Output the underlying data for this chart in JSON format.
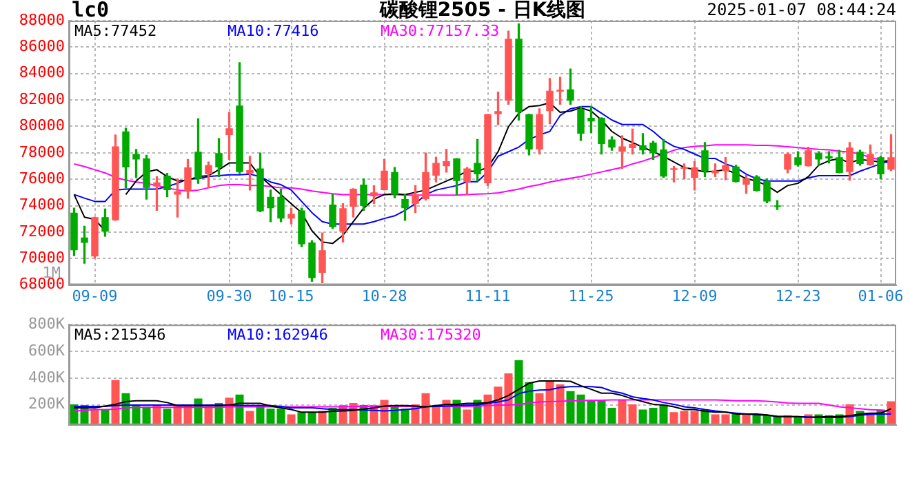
{
  "chart_data": [
    {
      "type": "candlestick",
      "title": "碳酸锂2505 - 日K线图",
      "annotations": [
        "lc0",
        "2025-01-07 08:44:24",
        "1M"
      ],
      "categories": [
        null,
        null,
        "09-09",
        null,
        null,
        null,
        null,
        null,
        null,
        null,
        null,
        null,
        null,
        null,
        null,
        "09-30",
        null,
        null,
        null,
        null,
        null,
        "10-15",
        null,
        null,
        null,
        null,
        null,
        null,
        null,
        null,
        "10-28",
        null,
        null,
        null,
        null,
        null,
        null,
        null,
        null,
        null,
        "11-11",
        null,
        null,
        null,
        null,
        null,
        null,
        null,
        null,
        null,
        "11-25",
        null,
        null,
        null,
        null,
        null,
        null,
        null,
        null,
        null,
        "12-09",
        null,
        null,
        null,
        null,
        null,
        null,
        null,
        null,
        null,
        "12-23",
        null,
        null,
        null,
        null,
        null,
        null,
        null,
        "01-06",
        null
      ],
      "ohlc": [
        [
          73470,
          73810,
          70220,
          70630
        ],
        [
          71590,
          72440,
          69640,
          71180
        ],
        [
          70150,
          73130,
          70050,
          73130
        ],
        [
          73130,
          73740,
          71690,
          72030
        ],
        [
          72890,
          79350,
          72890,
          78490
        ],
        [
          79620,
          79860,
          75350,
          76890
        ],
        [
          77910,
          78250,
          76140,
          77500
        ],
        [
          77570,
          77810,
          74490,
          75350
        ],
        [
          75450,
          76200,
          73640,
          75760
        ],
        [
          76270,
          76440,
          74670,
          75180
        ],
        [
          74840,
          76030,
          73130,
          75080
        ],
        [
          75110,
          77500,
          74560,
          76890
        ],
        [
          78080,
          80580,
          75690,
          76030
        ],
        [
          76370,
          77300,
          75350,
          77060
        ],
        [
          77980,
          79080,
          76200,
          76890
        ],
        [
          79350,
          81060,
          77500,
          79850
        ],
        [
          81570,
          84820,
          76440,
          76540
        ],
        [
          76440,
          77740,
          75180,
          76680
        ],
        [
          76820,
          77980,
          73540,
          73570
        ],
        [
          74670,
          75180,
          72780,
          73810
        ],
        [
          74670,
          75250,
          72780,
          73030
        ],
        [
          73030,
          73810,
          72610,
          73370
        ],
        [
          73640,
          73810,
          70900,
          71080
        ],
        [
          71210,
          71350,
          68270,
          68510
        ],
        [
          68920,
          71930,
          68170,
          70630
        ],
        [
          74080,
          74840,
          72270,
          72370
        ],
        [
          72030,
          74150,
          71250,
          73810
        ],
        [
          73910,
          75280,
          73130,
          75280
        ],
        [
          75590,
          76030,
          73640,
          73980
        ],
        [
          74700,
          75520,
          74150,
          75010
        ],
        [
          75180,
          77500,
          75180,
          76650
        ],
        [
          76540,
          76890,
          74590,
          74840
        ],
        [
          74490,
          74840,
          72890,
          73810
        ],
        [
          74150,
          75520,
          73470,
          74840
        ],
        [
          74490,
          77980,
          74430,
          76540
        ],
        [
          76270,
          77670,
          75790,
          77230
        ],
        [
          76990,
          78250,
          76540,
          77370
        ],
        [
          77570,
          77570,
          74840,
          75860
        ],
        [
          75790,
          76890,
          74840,
          76820
        ],
        [
          77230,
          79010,
          75860,
          76370
        ],
        [
          75690,
          80920,
          75520,
          80920
        ],
        [
          80920,
          82600,
          80140,
          81160
        ],
        [
          81950,
          87210,
          81670,
          86630
        ],
        [
          86630,
          87760,
          80480,
          81060
        ],
        [
          80920,
          80920,
          77840,
          78250
        ],
        [
          78250,
          81330,
          77910,
          80920
        ],
        [
          81160,
          83620,
          80200,
          82700
        ],
        [
          82630,
          83720,
          81670,
          82770
        ],
        [
          82800,
          84340,
          81670,
          81950
        ],
        [
          81330,
          81500,
          78940,
          79450
        ],
        [
          80650,
          81500,
          79520,
          80370
        ],
        [
          80650,
          80650,
          77910,
          78670
        ],
        [
          79010,
          79210,
          78190,
          78390
        ],
        [
          78080,
          79280,
          76820,
          78490
        ],
        [
          78360,
          79790,
          77910,
          78670
        ],
        [
          78560,
          79450,
          77910,
          78190
        ],
        [
          78770,
          78870,
          77500,
          77980
        ],
        [
          78250,
          79010,
          76130,
          76200
        ],
        [
          76710,
          76960,
          75790,
          76830
        ],
        [
          76790,
          77160,
          76030,
          76860
        ],
        [
          76100,
          77330,
          75180,
          76890
        ],
        [
          78190,
          78770,
          76200,
          76610
        ],
        [
          76450,
          77160,
          76200,
          76650
        ],
        [
          76610,
          77640,
          75960,
          77060
        ],
        [
          76960,
          77060,
          75790,
          75790
        ],
        [
          75590,
          76300,
          74940,
          76030
        ],
        [
          76200,
          76270,
          75110,
          75110
        ],
        [
          75860,
          76030,
          74220,
          74320
        ],
        [
          73980,
          74390,
          73710,
          73910
        ],
        [
          76720,
          77980,
          76480,
          77910
        ],
        [
          77670,
          78080,
          76990,
          77060
        ],
        [
          76990,
          78430,
          76990,
          78190
        ],
        [
          77980,
          78080,
          77060,
          77500
        ],
        [
          77740,
          78080,
          77230,
          77570
        ],
        [
          77670,
          78190,
          76480,
          76480
        ],
        [
          76540,
          78770,
          75930,
          78390
        ],
        [
          78080,
          78190,
          77060,
          77160
        ],
        [
          77060,
          78600,
          77060,
          77910
        ],
        [
          77670,
          77740,
          76030,
          76370
        ],
        [
          76720,
          79380,
          76650,
          77670
        ]
      ],
      "colors": [
        "#00aa00",
        "#00aa00",
        "#ff5555",
        "#00aa00",
        "#ff5555",
        "#00aa00",
        "#00aa00",
        "#00aa00",
        "#ff5555",
        "#00aa00",
        "#ff5555",
        "#ff5555",
        "#00aa00",
        "#ff5555",
        "#00aa00",
        "#ff5555",
        "#00aa00",
        "#ff5555",
        "#00aa00",
        "#00aa00",
        "#00aa00",
        "#ff5555",
        "#00aa00",
        "#00aa00",
        "#ff5555",
        "#00aa00",
        "#ff5555",
        "#ff5555",
        "#00aa00",
        "#ff5555",
        "#ff5555",
        "#00aa00",
        "#00aa00",
        "#ff5555",
        "#ff5555",
        "#ff5555",
        "#ff5555",
        "#00aa00",
        "#ff5555",
        "#00aa00",
        "#ff5555",
        "#ff5555",
        "#ff5555",
        "#00aa00",
        "#00aa00",
        "#ff5555",
        "#ff5555",
        "#ff5555",
        "#00aa00",
        "#00aa00",
        "#00aa00",
        "#00aa00",
        "#00aa00",
        "#ff5555",
        "#ff5555",
        "#00aa00",
        "#00aa00",
        "#00aa00",
        "#ff5555",
        "#ff5555",
        "#ff5555",
        "#00aa00",
        "#ff5555",
        "#ff5555",
        "#00aa00",
        "#ff5555",
        "#00aa00",
        "#00aa00",
        "#00aa00",
        "#ff5555",
        "#00aa00",
        "#ff5555",
        "#00aa00",
        "#00aa00",
        "#00aa00",
        "#ff5555",
        "#00aa00",
        "#ff5555",
        "#00aa00",
        "#ff5555"
      ],
      "series": [
        {
          "type": "line",
          "name": "MA5:77452",
          "color": "#000000",
          "values": [
            74840,
            73130,
            72960,
            72100,
            null,
            74840,
            75860,
            76550,
            76720,
            76200,
            75860,
            75930,
            76200,
            76270,
            76720,
            77230,
            77230,
            77230,
            76200,
            75520,
            74840,
            74150,
            73470,
            72100,
            71250,
            71140,
            71760,
            72790,
            73810,
            74490,
            74840,
            74900,
            74840,
            75010,
            75180,
            75520,
            75860,
            76200,
            76610,
            76610,
            76890,
            78080,
            79970,
            80990,
            81500,
            81570,
            81780,
            81060,
            81160,
            81400,
            81160,
            80480,
            79620,
            79110,
            78770,
            78430,
            78080,
            77740,
            77300,
            76890,
            76720,
            76550,
            76610,
            76720,
            76440,
            76030,
            75860,
            75520,
            75010,
            75520,
            75690,
            76200,
            77060,
            77400,
            77570,
            77230,
            77500,
            77400,
            77300,
            77452
          ]
        },
        {
          "type": "line",
          "name": "MA10:77416",
          "color": "#0000ff",
          "values": [
            74840,
            74570,
            74320,
            74320,
            75180,
            75250,
            75250,
            75250,
            75250,
            75450,
            75690,
            76030,
            76030,
            76200,
            76270,
            76340,
            76340,
            76380,
            76200,
            75790,
            75590,
            75180,
            74320,
            73470,
            72790,
            72610,
            72610,
            72610,
            72610,
            72790,
            73030,
            73230,
            73640,
            74150,
            74840,
            75180,
            75350,
            75520,
            75810,
            75810,
            76550,
            77740,
            78080,
            78430,
            79010,
            79350,
            79620,
            80820,
            81330,
            81500,
            81500,
            80990,
            80480,
            80140,
            80140,
            80140,
            79620,
            78940,
            78490,
            78260,
            77910,
            77570,
            77570,
            77160,
            76890,
            76380,
            76030,
            75860,
            75860,
            75860,
            75860,
            76100,
            76270,
            76270,
            76270,
            76270,
            76610,
            76890,
            77160,
            77416
          ]
        },
        {
          "type": "line",
          "name": "MA30:77157.33",
          "color": "#ff00ff",
          "values": [
            77160,
            76960,
            76720,
            76480,
            76140,
            75930,
            75790,
            75690,
            75520,
            75350,
            75180,
            75110,
            75180,
            75350,
            75520,
            75590,
            75590,
            75520,
            75520,
            75450,
            75350,
            75350,
            75250,
            75110,
            75010,
            74900,
            74840,
            74840,
            74840,
            74840,
            74840,
            74840,
            74800,
            74800,
            74800,
            74800,
            74800,
            74800,
            74840,
            74870,
            74900,
            74970,
            75110,
            75250,
            75450,
            75590,
            75790,
            75930,
            76070,
            76200,
            76380,
            76550,
            76720,
            76890,
            77160,
            77370,
            77640,
            77910,
            78190,
            78390,
            78490,
            78530,
            78600,
            78600,
            78600,
            78600,
            78560,
            78560,
            78530,
            78460,
            78390,
            78320,
            78260,
            78220,
            78120,
            78050,
            77910,
            77640,
            77470,
            77157.33
          ]
        }
      ],
      "ylim": [
        68000,
        88000
      ],
      "yticks": [
        68000,
        70000,
        72000,
        74000,
        76000,
        78000,
        80000,
        82000,
        84000,
        86000,
        88000
      ],
      "grid": true,
      "legend": "top left"
    },
    {
      "type": "bar",
      "tick_labels": "y",
      "categories": [
        null,
        null,
        null,
        null,
        null,
        null,
        null,
        null,
        null,
        null,
        null,
        null,
        null,
        null,
        null,
        null,
        null,
        null,
        null,
        null,
        null,
        null,
        null,
        null,
        null,
        null,
        null,
        null,
        null,
        null,
        null,
        null,
        null,
        null,
        null,
        null,
        null,
        null,
        null,
        null,
        null,
        null,
        null,
        null,
        null,
        null,
        null,
        null,
        null,
        null,
        null,
        null,
        null,
        null,
        null,
        null,
        null,
        null,
        null,
        null,
        null,
        null,
        null,
        null,
        null,
        null,
        null,
        null,
        null,
        null,
        null,
        null,
        null,
        null,
        null,
        null,
        null,
        null,
        null,
        null
      ],
      "series": [
        {
          "type": "bar",
          "colors": [
            "#00aa00",
            "#00aa00",
            "#ff5555",
            "#00aa00",
            "#ff5555",
            "#00aa00",
            "#00aa00",
            "#00aa00",
            "#ff5555",
            "#00aa00",
            "#ff5555",
            "#ff5555",
            "#00aa00",
            "#ff5555",
            "#00aa00",
            "#ff5555",
            "#00aa00",
            "#ff5555",
            "#00aa00",
            "#00aa00",
            "#00aa00",
            "#ff5555",
            "#00aa00",
            "#00aa00",
            "#ff5555",
            "#00aa00",
            "#ff5555",
            "#ff5555",
            "#00aa00",
            "#ff5555",
            "#ff5555",
            "#00aa00",
            "#00aa00",
            "#ff5555",
            "#ff5555",
            "#ff5555",
            "#ff5555",
            "#00aa00",
            "#ff5555",
            "#00aa00",
            "#ff5555",
            "#ff5555",
            "#ff5555",
            "#00aa00",
            "#00aa00",
            "#ff5555",
            "#ff5555",
            "#ff5555",
            "#00aa00",
            "#00aa00",
            "#00aa00",
            "#00aa00",
            "#00aa00",
            "#ff5555",
            "#ff5555",
            "#00aa00",
            "#00aa00",
            "#00aa00",
            "#ff5555",
            "#ff5555",
            "#ff5555",
            "#00aa00",
            "#ff5555",
            "#ff5555",
            "#00aa00",
            "#ff5555",
            "#00aa00",
            "#00aa00",
            "#00aa00",
            "#ff5555",
            "#00aa00",
            "#ff5555",
            "#00aa00",
            "#00aa00",
            "#00aa00",
            "#ff5555",
            "#00aa00",
            "#ff5555",
            "#00aa00",
            "#ff5555"
          ],
          "values": [
            204000,
            198000,
            165000,
            165000,
            386000,
            287000,
            204000,
            188000,
            198000,
            171000,
            198000,
            198000,
            247000,
            188000,
            214000,
            254000,
            277000,
            155000,
            198000,
            171000,
            171000,
            129000,
            145000,
            145000,
            155000,
            178000,
            198000,
            214000,
            198000,
            198000,
            237000,
            198000,
            171000,
            204000,
            287000,
            198000,
            237000,
            237000,
            165000,
            237000,
            277000,
            336000,
            435000,
            534000,
            369000,
            287000,
            379000,
            353000,
            303000,
            277000,
            237000,
            237000,
            178000,
            237000,
            204000,
            165000,
            178000,
            198000,
            145000,
            155000,
            155000,
            165000,
            129000,
            129000,
            138000,
            129000,
            122000,
            122000,
            112000,
            122000,
            105000,
            129000,
            129000,
            122000,
            129000,
            204000,
            155000,
            138000,
            165000,
            227000
          ]
        },
        {
          "type": "line",
          "name": "MA5:215346",
          "color": "#000000",
          "values": [
            178000,
            178000,
            178000,
            191000,
            204000,
            224000,
            231000,
            231000,
            231000,
            217000,
            194000,
            194000,
            194000,
            194000,
            194000,
            198000,
            211000,
            211000,
            211000,
            191000,
            178000,
            165000,
            145000,
            145000,
            145000,
            152000,
            155000,
            158000,
            168000,
            178000,
            191000,
            194000,
            194000,
            191000,
            185000,
            194000,
            204000,
            204000,
            211000,
            211000,
            217000,
            237000,
            270000,
            316000,
            362000,
            379000,
            379000,
            379000,
            376000,
            343000,
            316000,
            287000,
            287000,
            270000,
            244000,
            224000,
            204000,
            198000,
            185000,
            165000,
            165000,
            152000,
            145000,
            145000,
            132000,
            132000,
            132000,
            125000,
            112000,
            112000,
            112000,
            105000,
            109000,
            112000,
            112000,
            119000,
            132000,
            138000,
            138000,
            171000
          ]
        },
        {
          "type": "line",
          "name": "MA10:162946",
          "color": "#0000ff",
          "values": [
            188000,
            188000,
            188000,
            188000,
            194000,
            198000,
            198000,
            198000,
            198000,
            198000,
            198000,
            198000,
            198000,
            198000,
            198000,
            198000,
            194000,
            194000,
            194000,
            194000,
            188000,
            178000,
            178000,
            178000,
            171000,
            165000,
            165000,
            165000,
            161000,
            158000,
            155000,
            158000,
            165000,
            171000,
            185000,
            188000,
            191000,
            194000,
            198000,
            198000,
            211000,
            221000,
            237000,
            283000,
            303000,
            310000,
            313000,
            330000,
            336000,
            336000,
            336000,
            330000,
            303000,
            287000,
            260000,
            247000,
            237000,
            217000,
            204000,
            185000,
            178000,
            165000,
            155000,
            145000,
            138000,
            132000,
            125000,
            122000,
            115000,
            112000,
            112000,
            109000,
            105000,
            105000,
            105000,
            112000,
            122000,
            129000,
            132000,
            132000
          ]
        },
        {
          "type": "line",
          "name": "MA30:175320",
          "color": "#ff00ff",
          "values": [
            155000,
            158000,
            165000,
            165000,
            168000,
            178000,
            181000,
            181000,
            181000,
            181000,
            181000,
            181000,
            181000,
            181000,
            181000,
            185000,
            185000,
            185000,
            185000,
            185000,
            185000,
            185000,
            185000,
            185000,
            185000,
            185000,
            185000,
            188000,
            188000,
            188000,
            188000,
            188000,
            188000,
            188000,
            188000,
            188000,
            188000,
            188000,
            188000,
            191000,
            194000,
            198000,
            198000,
            204000,
            214000,
            221000,
            224000,
            227000,
            231000,
            231000,
            234000,
            234000,
            237000,
            237000,
            237000,
            237000,
            237000,
            237000,
            237000,
            237000,
            237000,
            237000,
            237000,
            234000,
            231000,
            231000,
            231000,
            227000,
            221000,
            214000,
            211000,
            211000,
            211000,
            198000,
            185000,
            178000,
            171000,
            164000,
            161000,
            145000
          ]
        }
      ],
      "ylim": [
        50000,
        800000
      ],
      "yticks": [
        {
          "value": 200000,
          "label": "200K"
        },
        {
          "value": 400000,
          "label": "400K"
        },
        {
          "value": 600000,
          "label": "600K"
        },
        {
          "value": 800000,
          "label": "800K"
        }
      ],
      "grid": "y",
      "legend": "top left"
    }
  ]
}
